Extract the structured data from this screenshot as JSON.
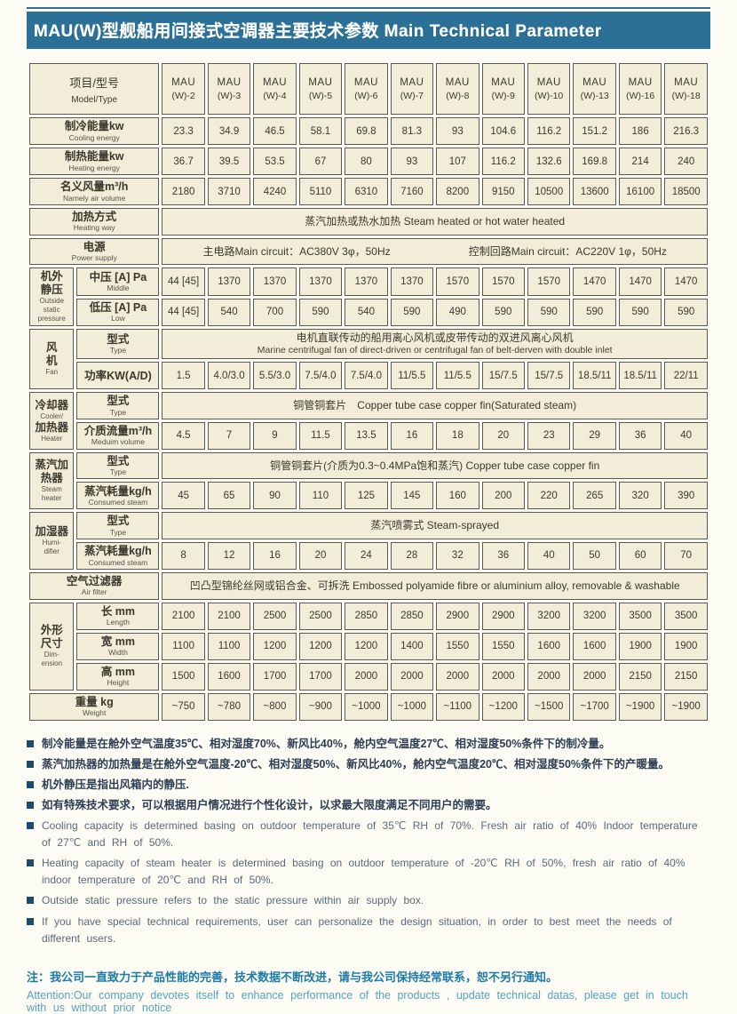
{
  "title": "MAU(W)型舰船用间接式空调器主要技术参数 Main Technical Parameter",
  "table": {
    "corner": {
      "zh": "项目/型号",
      "en": "Model/Type"
    },
    "models": [
      [
        "MAU",
        "(W)-2"
      ],
      [
        "MAU",
        "(W)-3"
      ],
      [
        "MAU",
        "(W)-4"
      ],
      [
        "MAU",
        "(W)-5"
      ],
      [
        "MAU",
        "(W)-6"
      ],
      [
        "MAU",
        "(W)-7"
      ],
      [
        "MAU",
        "(W)-8"
      ],
      [
        "MAU",
        "(W)-9"
      ],
      [
        "MAU",
        "(W)-10"
      ],
      [
        "MAU",
        "(W)-13"
      ],
      [
        "MAU",
        "(W)-16"
      ],
      [
        "MAU",
        "(W)-18"
      ]
    ],
    "sections": [
      {
        "type": "row",
        "zh": "制冷能量kw",
        "en": "Cooling energy",
        "values": [
          "23.3",
          "34.9",
          "46.5",
          "58.1",
          "69.8",
          "81.3",
          "93",
          "104.6",
          "116.2",
          "151.2",
          "186",
          "216.3"
        ]
      },
      {
        "type": "row",
        "zh": "制热能量kw",
        "en": "Heating energy",
        "values": [
          "36.7",
          "39.5",
          "53.5",
          "67",
          "80",
          "93",
          "107",
          "116.2",
          "132.6",
          "169.8",
          "214",
          "240"
        ]
      },
      {
        "type": "row",
        "zh": "名义风量m³/h",
        "en": "Namely air volume",
        "values": [
          "2180",
          "3710",
          "4240",
          "5110",
          "6310",
          "7160",
          "8200",
          "9150",
          "10500",
          "13600",
          "16100",
          "18500"
        ]
      },
      {
        "type": "fullspan",
        "zh": "加热方式",
        "en": "Heating way",
        "lines": [
          "蒸汽加热或热水加热 Steam heated or hot water heated"
        ]
      },
      {
        "type": "fullspan",
        "zh": "电源",
        "en": "Power supply",
        "segments": [
          "主电路Main circuit：AC380V 3φ，50Hz",
          "控制回路Main circuit：AC220V 1φ，50Hz"
        ]
      },
      {
        "type": "group",
        "label_lines": [
          [
            "zh",
            "机外"
          ],
          [
            "zh",
            "静压"
          ],
          [
            "en",
            "Outside"
          ],
          [
            "en",
            "static"
          ],
          [
            "en",
            "pressure"
          ]
        ],
        "rows": [
          {
            "type": "row",
            "zh": "中压 [A] Pa",
            "en": "Middle",
            "values": [
              "44 [45]",
              "1370",
              "1370",
              "1370",
              "1370",
              "1370",
              "1570",
              "1570",
              "1570",
              "1470",
              "1470",
              "1470"
            ]
          },
          {
            "type": "row",
            "zh": "低压 [A] Pa",
            "en": "Low",
            "values": [
              "44 [45]",
              "540",
              "700",
              "590",
              "540",
              "590",
              "490",
              "590",
              "590",
              "590",
              "590",
              "590"
            ]
          }
        ]
      },
      {
        "type": "group",
        "label_lines": [
          [
            "zh",
            "风"
          ],
          [
            "zh",
            "机"
          ],
          [
            "en",
            "Fan"
          ]
        ],
        "rows": [
          {
            "type": "fullspan",
            "zh": "型式",
            "en": "Type",
            "lines": [
              "电机直联传动的船用离心风机或皮带传动的双进风离心风机",
              "Marine centrifugal fan of direct-driven or centrifugal fan of belt-derven with double inlet"
            ]
          },
          {
            "type": "row",
            "zh": "功率KW(A/D)",
            "en": "",
            "values": [
              "1.5",
              "4.0/3.0",
              "5.5/3.0",
              "7.5/4.0",
              "7.5/4.0",
              "11/5.5",
              "11/5.5",
              "15/7.5",
              "15/7.5",
              "18.5/11",
              "18.5/11",
              "22/11"
            ]
          }
        ]
      },
      {
        "type": "group",
        "label_lines": [
          [
            "zh",
            "冷却器"
          ],
          [
            "en",
            "Cooler/"
          ],
          [
            "zh",
            "加热器"
          ],
          [
            "en",
            "Heater"
          ]
        ],
        "rows": [
          {
            "type": "fullspan",
            "zh": "型式",
            "en": "Type",
            "lines": [
              "铜管铜套片　Copper tube case copper fin(Saturated steam)"
            ]
          },
          {
            "type": "row",
            "zh": "介质流量m³/h",
            "en": "Meduim volume",
            "values": [
              "4.5",
              "7",
              "9",
              "11.5",
              "13.5",
              "16",
              "18",
              "20",
              "23",
              "29",
              "36",
              "40"
            ]
          }
        ]
      },
      {
        "type": "group",
        "label_lines": [
          [
            "zh",
            "蒸汽加"
          ],
          [
            "zh",
            "热器"
          ],
          [
            "en",
            "Steam"
          ],
          [
            "en",
            "heater"
          ]
        ],
        "rows": [
          {
            "type": "fullspan",
            "zh": "型式",
            "en": "Type",
            "lines": [
              "铜管铜套片(介质为0.3~0.4MPa饱和蒸汽) Copper tube case copper fin"
            ]
          },
          {
            "type": "row",
            "zh": "蒸汽耗量kg/h",
            "en": "Consumed steam",
            "values": [
              "45",
              "65",
              "90",
              "110",
              "125",
              "145",
              "160",
              "200",
              "220",
              "265",
              "320",
              "390"
            ]
          }
        ]
      },
      {
        "type": "group",
        "label_lines": [
          [
            "zh",
            "加湿器"
          ],
          [
            "en",
            "Humi-"
          ],
          [
            "en",
            "difier"
          ]
        ],
        "rows": [
          {
            "type": "fullspan",
            "zh": "型式",
            "en": "Type",
            "lines": [
              "蒸汽喷雾式 Steam-sprayed"
            ]
          },
          {
            "type": "row",
            "zh": "蒸汽耗量kg/h",
            "en": "Consumed steam",
            "values": [
              "8",
              "12",
              "16",
              "20",
              "24",
              "28",
              "32",
              "36",
              "40",
              "50",
              "60",
              "70"
            ]
          }
        ]
      },
      {
        "type": "fullspan",
        "zh": "空气过滤器",
        "en": "Air filter",
        "lines": [
          "凹凸型锦纶丝网或铝合金、可拆洗 Embossed polyamide fibre or aluminium alloy, removable & washable"
        ]
      },
      {
        "type": "group",
        "label_lines": [
          [
            "zh",
            "外形"
          ],
          [
            "zh",
            "尺寸"
          ],
          [
            "en",
            "Dim-"
          ],
          [
            "en",
            "ension"
          ]
        ],
        "rows": [
          {
            "type": "row",
            "zh": "长 mm",
            "en": "Length",
            "values": [
              "2100",
              "2100",
              "2500",
              "2500",
              "2850",
              "2850",
              "2900",
              "2900",
              "3200",
              "3200",
              "3500",
              "3500"
            ]
          },
          {
            "type": "row",
            "zh": "宽 mm",
            "en": "Width",
            "values": [
              "1100",
              "1100",
              "1200",
              "1200",
              "1200",
              "1400",
              "1550",
              "1550",
              "1600",
              "1600",
              "1900",
              "1900"
            ]
          },
          {
            "type": "row",
            "zh": "高 mm",
            "en": "Height",
            "values": [
              "1500",
              "1600",
              "1700",
              "1700",
              "2000",
              "2000",
              "2000",
              "2000",
              "2000",
              "2000",
              "2150",
              "2150"
            ]
          }
        ]
      },
      {
        "type": "row",
        "zh": "重量 kg",
        "en": "Weight",
        "values": [
          "~750",
          "~780",
          "~800",
          "~900",
          "~1000",
          "~1000",
          "~1100",
          "~1200",
          "~1500",
          "~1700",
          "~1900",
          "~1900"
        ]
      }
    ]
  },
  "notes": [
    {
      "lang": "zh",
      "text": "制冷能量是在舱外空气温度35℃、相对湿度70%、新风比40%，舱内空气温度27℃、相对湿度50%条件下的制冷量。"
    },
    {
      "lang": "zh",
      "text": "蒸汽加热器的加热量是在舱外空气温度-20℃、相对湿度50%、新风比40%，舱内空气温度20℃、相对湿度50%条件下的产暖量。"
    },
    {
      "lang": "zh",
      "text": "机外静压是指出风箱内的静压."
    },
    {
      "lang": "zh",
      "text": "如有特殊技术要求，可以根据用户情况进行个性化设计，以求最大限度满足不同用户的需要。"
    },
    {
      "lang": "en",
      "text": "Cooling capacity is determined basing on outdoor temperature of 35℃ RH of 70%. Fresh air ratio of 40% Indoor temperature of 27℃ and RH of 50%."
    },
    {
      "lang": "en",
      "text": "Heating capacity of steam heater is determined basing on outdoor temperature of -20℃ RH of 50%, fresh air ratio of 40% indoor temperature of 20℃ and RH of 50%."
    },
    {
      "lang": "en",
      "text": "Outside static pressure refers to the static pressure within air supply box."
    },
    {
      "lang": "en",
      "text": "If you have special technical requirements, user can personalize the design situation, in order to best meet the needs of different users."
    }
  ],
  "footer": {
    "zh": "注：我公司一直致力于产品性能的完善，技术数据不断改进，请与我公司保持经常联系，恕不另行通知。",
    "en": "Attention:Our company devotes itself to enhance performance of the products , update technical datas, please get in touch with us without prior notice"
  },
  "colors": {
    "teal_header": "#2b7096",
    "cell_cream": "#f1edd8",
    "cell_border": "#5b5a50",
    "note_navy": "#2e3e54",
    "note_gray": "#5a6a76",
    "footer_teal": "#1e7ba8",
    "footer_light_teal": "#58a2c4",
    "bullet_navy": "#1d4c6b",
    "page_bg": "#fcfbf4"
  }
}
